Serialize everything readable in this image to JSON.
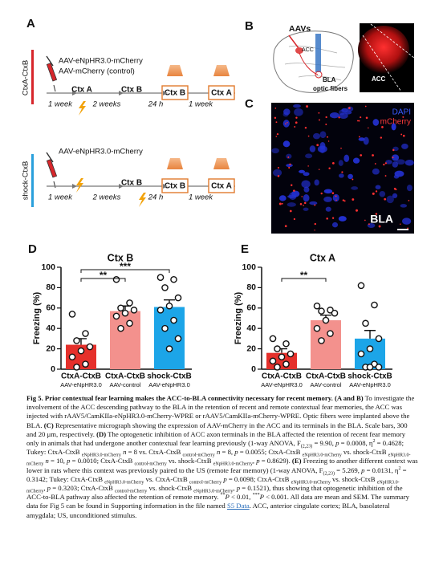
{
  "panels": {
    "A": {
      "label": "A",
      "row1": {
        "group": "CtxA-CtxB",
        "virus": [
          "AAV-eNpHR3.0-mCherry",
          "AAV-mCherry (control)"
        ],
        "steps": [
          "Ctx A",
          "Ctx B",
          "Ctx B",
          "Ctx A"
        ],
        "intervals": [
          "1 week",
          "2 weeks",
          "24 h",
          "1 week"
        ]
      },
      "row2": {
        "group": "shock-CtxB",
        "virus": [
          "AAV-eNpHR3.0-mCherry"
        ],
        "steps": [
          "Ctx B",
          "Ctx B",
          "Ctx A"
        ],
        "intervals": [
          "1 week",
          "2 weeks",
          "24 h",
          "1 week"
        ]
      }
    },
    "B": {
      "label": "B",
      "texts": [
        "AAVs",
        "ACC",
        "BLA",
        "optic fibers"
      ],
      "micrograph": "ACC"
    },
    "C": {
      "label": "C",
      "texts": [
        "DAPI",
        "mCherry",
        "BLA"
      ]
    }
  },
  "chart_data": [
    {
      "type": "bar",
      "label": "D",
      "title": "Ctx B",
      "ylabel": "Freezing (%)",
      "categories": [
        "CtxA-CtxB",
        "CtxA-CtxB",
        "shock-CtxB"
      ],
      "category_sublabels": [
        "AAV-eNpHR3.0",
        "AAV-control",
        "AAV-eNpHR3.0"
      ],
      "values": [
        24,
        57,
        61
      ],
      "errors": [
        6,
        5,
        7
      ],
      "colors": [
        "#e5302b",
        "#f3918d",
        "#1ca5e8"
      ],
      "points": [
        [
          54,
          35,
          28,
          22,
          18,
          12,
          5,
          2
        ],
        [
          88,
          65,
          60,
          58,
          55,
          52,
          45,
          40
        ],
        [
          90,
          88,
          80,
          70,
          62,
          58,
          48,
          40,
          30,
          20
        ]
      ],
      "annotations": [
        {
          "text": "**",
          "between": [
            0,
            1
          ]
        },
        {
          "text": "***",
          "between": [
            0,
            2
          ]
        }
      ],
      "ylim": [
        0,
        100
      ],
      "yticks": [
        0,
        20,
        40,
        60,
        80,
        100
      ]
    },
    {
      "type": "bar",
      "label": "E",
      "title": "Ctx A",
      "ylabel": "Freezing (%)",
      "categories": [
        "CtxA-CtxB",
        "CtxA-CtxB",
        "shock-CtxB"
      ],
      "category_sublabels": [
        "AAV-eNpHR3.0",
        "AAV-control",
        "AAV-eNpHR3.0"
      ],
      "values": [
        16,
        48,
        30
      ],
      "errors": [
        4,
        5,
        8
      ],
      "colors": [
        "#e5302b",
        "#f3918d",
        "#1ca5e8"
      ],
      "points": [
        [
          30,
          25,
          20,
          15,
          12,
          8,
          5,
          2
        ],
        [
          62,
          58,
          57,
          55,
          48,
          40,
          35,
          28
        ],
        [
          82,
          63,
          45,
          30,
          20,
          15,
          5,
          2,
          2,
          2
        ]
      ],
      "annotations": [
        {
          "text": "**",
          "between": [
            0,
            1
          ]
        }
      ],
      "ylim": [
        0,
        100
      ],
      "yticks": [
        0,
        20,
        40,
        60,
        80,
        100
      ]
    }
  ],
  "caption": [
    [
      "Fig 5. Prior contextual fear learning makes the ACC-to-BLA connectivity necessary for recent memory. (A and B)",
      "b"
    ],
    " To investigate the involvement of the ACC descending pathway to the BLA in the retention of recent and remote contextual fear memories, the ACC was injected with rAAV5/CamKIIa-eNpHR3.0-mCherry-WPRE or rAAV5/CamKIIa-mCherry-WPRE. Optic fibers were implanted above the BLA. ",
    [
      "(C)",
      "b"
    ],
    " Representative micrograph showing the expression of AAV-mCherry in the ACC and its terminals in the BLA. Scale bars, 300 and 20 μm, respectively. ",
    [
      "(D)",
      "b"
    ],
    " The optogenetic inhibition of ACC axon terminals in the BLA affected the retention of recent fear memory only in animals that had undergone another contextual fear learning previously (1-way ANOVA, F",
    [
      "(2,23)",
      "sub"
    ],
    " = 9.90, ",
    [
      "p",
      "i"
    ],
    " = 0.0008, η",
    [
      "2",
      "sup"
    ],
    " = 0.4628; Tukey: CtxA-CtxB ",
    [
      "eNpHR3.0-mCherry",
      "sub"
    ],
    " ",
    [
      "n",
      "i"
    ],
    " = 8 vs. CtxA-CtxB ",
    [
      "control-mCherry",
      "sub"
    ],
    " ",
    [
      "n",
      "i"
    ],
    " = 8, ",
    [
      "p",
      "i"
    ],
    " = 0.0055; CtxA-CtxB ",
    [
      "eNpHR3.0-mCherry",
      "sub"
    ],
    " vs. shock-CtxB ",
    [
      "eNpHR3.0-mCherry",
      "sub"
    ],
    " ",
    [
      "n",
      "i"
    ],
    " = 10, ",
    [
      "p",
      "i"
    ],
    " = 0.0010; CtxA-CtxB ",
    [
      "control-mCherry",
      "sub"
    ],
    " vs. shock-CtxB ",
    [
      "eNpHR3.0-mCherry",
      "sub"
    ],
    ", ",
    [
      "p",
      "i"
    ],
    " = 0.8629). ",
    [
      "(E)",
      "b"
    ],
    " Freezing to another different context was lower in rats where this context was previously paired to the US (remote fear memory) (1-way ANOVA, F",
    [
      "(2,23)",
      "sub"
    ],
    " = 5.269, ",
    [
      "p",
      "i"
    ],
    " = 0.0131, η",
    [
      "2",
      "sup"
    ],
    " = 0.3142; Tukey: CtxA-CtxB ",
    [
      "eNpHR3.0-mCherry",
      "sub"
    ],
    " vs. CtxA-CtxB ",
    [
      "control-mCherry",
      "sub"
    ],
    " ",
    [
      "p",
      "i"
    ],
    " = 0.0098; CtxA-CtxB ",
    [
      "eNpHR3.0-mCherry",
      "sub"
    ],
    " vs. shock-CtxB ",
    [
      "eNpHR3.0-mCherry",
      "sub"
    ],
    ", ",
    [
      "p",
      "i"
    ],
    " = 0.3203; CtxA-CtxB ",
    [
      "control-mCherry",
      "sub"
    ],
    " vs. shock-CtxB ",
    [
      "eNpHR3.0-mCherry",
      "sub"
    ],
    ", ",
    [
      "p",
      "i"
    ],
    " = 0.1521), thus showing that optogenetic inhibition of the ACC-to-BLA pathway also affected the retention of remote memory. ",
    [
      "**",
      "sup"
    ],
    [
      "P",
      "i"
    ],
    " < 0.01, ",
    [
      "***",
      "sup"
    ],
    [
      "P",
      "i"
    ],
    " < 0.001. All data are mean and SEM. The summary data for Fig 5 can be found in Supporting information in the file named ",
    [
      "S5 Data",
      "a"
    ],
    ". ACC, anterior cingulate cortex; BLA, basolateral amygdala; US, unconditioned stimulus."
  ]
}
